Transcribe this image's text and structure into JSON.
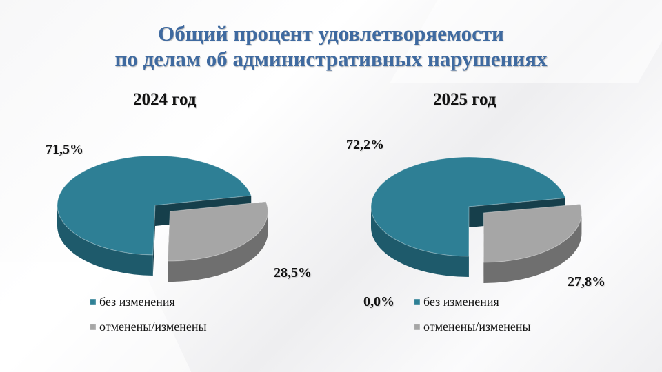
{
  "title": {
    "line1": "Общий процент удовлетворяемости",
    "line2": "по делам об административных нарушениях"
  },
  "colors": {
    "unchanged": "#2e7f95",
    "changed": "#a6a6a6"
  },
  "chart_data": [
    {
      "type": "pie",
      "title": "2024 год",
      "categories": [
        "без изменения",
        "отменены/изменены"
      ],
      "values": [
        71.5,
        28.5
      ],
      "labels": [
        "71,5%",
        "28,5%"
      ],
      "legend": "bottom"
    },
    {
      "type": "pie",
      "title": "2025 год",
      "categories": [
        "без изменения",
        "отменены/изменены"
      ],
      "values": [
        72.2,
        27.8
      ],
      "labels": [
        "72,2%",
        "27,8%"
      ],
      "extra_label": "0,0%",
      "legend": "bottom"
    }
  ]
}
